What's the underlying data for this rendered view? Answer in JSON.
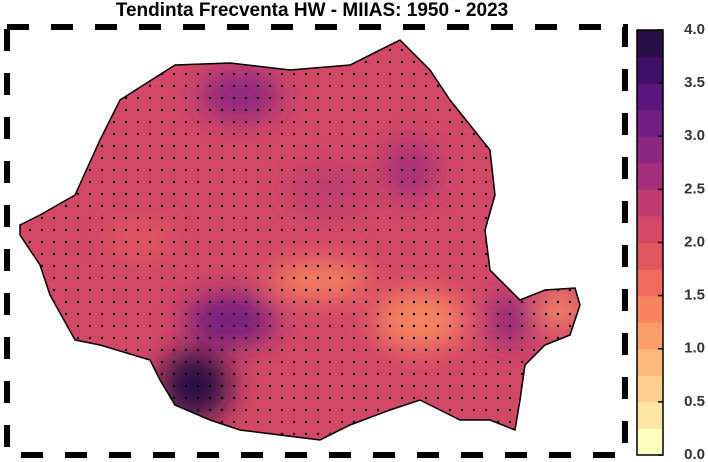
{
  "map": {
    "title": "Tendinta Frecventa HW - MIIAS: 1950 - 2023",
    "colorbar": {
      "lim": [
        0,
        4
      ],
      "ticks": [
        {
          "value": 0,
          "label": "0.0"
        },
        {
          "value": 0.5,
          "label": "0.5"
        },
        {
          "value": 1,
          "label": "1.0"
        },
        {
          "value": 1.5,
          "label": "1.5"
        },
        {
          "value": 2,
          "label": "2.0"
        },
        {
          "value": 2.5,
          "label": "2.5"
        },
        {
          "value": 3,
          "label": "3.0"
        },
        {
          "value": 3.5,
          "label": "3.5"
        },
        {
          "value": 4,
          "label": "4.0"
        }
      ],
      "colors": [
        "#fcfdbf",
        "#fde6a4",
        "#fecf8e",
        "#feb77c",
        "#fc9e6b",
        "#f8845f",
        "#f06b5b",
        "#e3565f",
        "#d34867",
        "#bf3c6f",
        "#a52f7a",
        "#8c2681",
        "#731e81",
        "#5a167c",
        "#3f1166",
        "#2a0f45"
      ]
    }
  }
}
